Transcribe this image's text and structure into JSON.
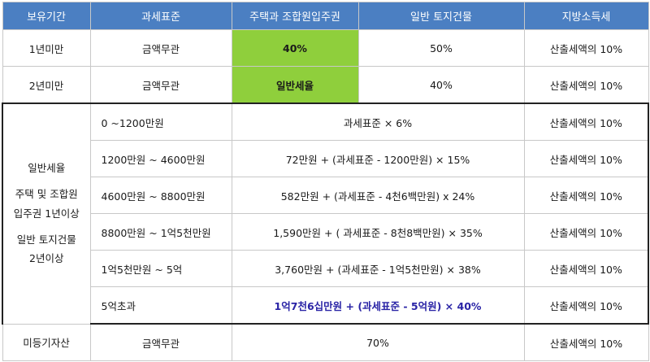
{
  "headers": [
    "보유기간",
    "과세표준",
    "주택과 조합원입주권",
    "일반 토지건물",
    "지방소득세"
  ],
  "rows_top": [
    {
      "period": "1년미만",
      "base": "금액무관",
      "house": "40%",
      "land": "50%",
      "local": "산출세액의 10%"
    },
    {
      "period": "2년미만",
      "base": "금액무관",
      "house": "일반세율",
      "land": "40%",
      "local": "산출세액의 10%"
    }
  ],
  "general": {
    "period_lines": [
      "일반세율",
      "주택 및 조합원",
      "입주권 1년이상",
      "일반 토지건물",
      "2년이상"
    ],
    "rows": [
      {
        "base": "0 ~1200만원",
        "rate": "과세표준  × 6%",
        "local": "산출세액의 10%"
      },
      {
        "base": "1200만원 ~ 4600만원",
        "rate": "72만원 + (과세표준 - 1200만원) × 15%",
        "local": "산출세액의 10%"
      },
      {
        "base": "4600만원 ~ 8800만원",
        "rate": "582만원 + (과세표준 - 4천6백만원) x 24%",
        "local": "산출세액의 10%"
      },
      {
        "base": "8800만원 ~ 1억5천만원",
        "rate": "1,590만원 + ( 과세표준 - 8천8백만원) × 35%",
        "local": "산출세액의 10%"
      },
      {
        "base": "1억5천만원 ~ 5억",
        "rate": "3,760만원 + (과세표준 - 1억5천만원) × 38%",
        "local": "산출세액의 10%"
      },
      {
        "base": "5억초과",
        "rate": "1억7천6십만원 + (과세표준 - 5억원) × 40%",
        "local": "산출세액의 10%"
      }
    ]
  },
  "unregistered": {
    "period": "미등기자산",
    "base": "금액무관",
    "rate": "70%",
    "local": "산출세액의 10%"
  },
  "colors": {
    "header_bg": "#4b7fc2",
    "highlight_green": "#8fcf3c",
    "highlight_text_blue": "#2a24a6"
  }
}
